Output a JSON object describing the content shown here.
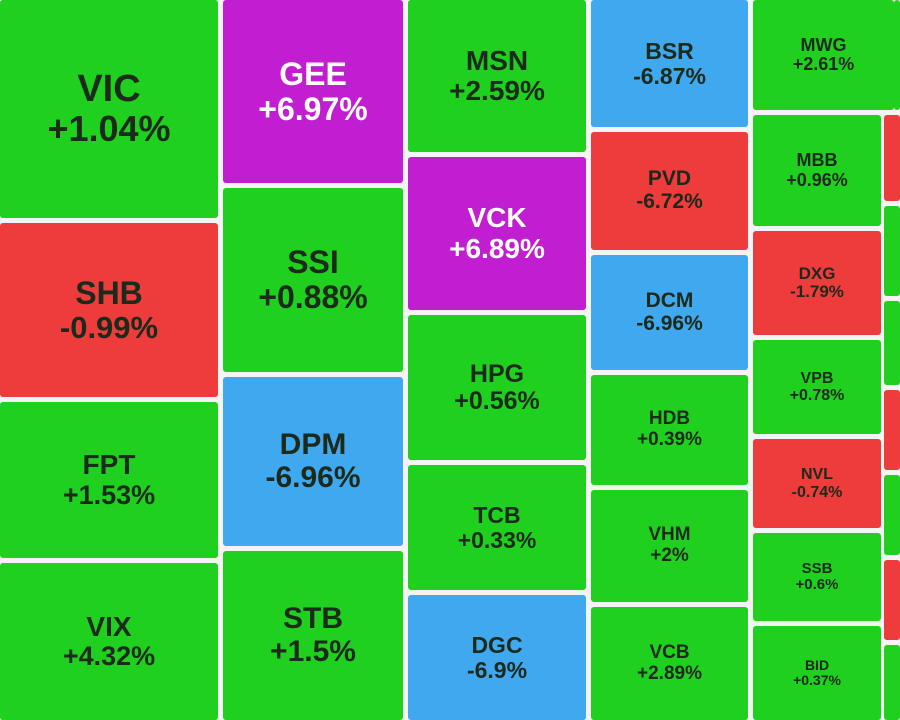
{
  "chart_data": {
    "type": "treemap",
    "colors": {
      "up": "#1fd01f",
      "down": "#ee3b3b",
      "ceiling": "#c11ed1",
      "floor": "#3fa8ee",
      "text_dark": "#1b2a1b",
      "text_light": "#ffffff"
    },
    "items": [
      {
        "symbol": "VIC",
        "change": "+1.04%",
        "value": 1.04,
        "status": "up"
      },
      {
        "symbol": "SHB",
        "change": "-0.99%",
        "value": -0.99,
        "status": "down"
      },
      {
        "symbol": "FPT",
        "change": "+1.53%",
        "value": 1.53,
        "status": "up"
      },
      {
        "symbol": "VIX",
        "change": "+4.32%",
        "value": 4.32,
        "status": "up"
      },
      {
        "symbol": "GEE",
        "change": "+6.97%",
        "value": 6.97,
        "status": "ceiling"
      },
      {
        "symbol": "SSI",
        "change": "+0.88%",
        "value": 0.88,
        "status": "up"
      },
      {
        "symbol": "DPM",
        "change": "-6.96%",
        "value": -6.96,
        "status": "floor"
      },
      {
        "symbol": "STB",
        "change": "+1.5%",
        "value": 1.5,
        "status": "up"
      },
      {
        "symbol": "MSN",
        "change": "+2.59%",
        "value": 2.59,
        "status": "up"
      },
      {
        "symbol": "VCK",
        "change": "+6.89%",
        "value": 6.89,
        "status": "ceiling"
      },
      {
        "symbol": "HPG",
        "change": "+0.56%",
        "value": 0.56,
        "status": "up"
      },
      {
        "symbol": "TCB",
        "change": "+0.33%",
        "value": 0.33,
        "status": "up"
      },
      {
        "symbol": "DGC",
        "change": "-6.9%",
        "value": -6.9,
        "status": "floor"
      },
      {
        "symbol": "BSR",
        "change": "-6.87%",
        "value": -6.87,
        "status": "floor"
      },
      {
        "symbol": "PVD",
        "change": "-6.72%",
        "value": -6.72,
        "status": "down"
      },
      {
        "symbol": "DCM",
        "change": "-6.96%",
        "value": -6.96,
        "status": "floor"
      },
      {
        "symbol": "HDB",
        "change": "+0.39%",
        "value": 0.39,
        "status": "up"
      },
      {
        "symbol": "VHM",
        "change": "+2%",
        "value": 2,
        "status": "up"
      },
      {
        "symbol": "VCB",
        "change": "+2.89%",
        "value": 2.89,
        "status": "up"
      },
      {
        "symbol": "MWG",
        "change": "+2.61%",
        "value": 2.61,
        "status": "up"
      },
      {
        "symbol": "MBB",
        "change": "+0.96%",
        "value": 0.96,
        "status": "up"
      },
      {
        "symbol": "DXG",
        "change": "-1.79%",
        "value": -1.79,
        "status": "down"
      },
      {
        "symbol": "VPB",
        "change": "+0.78%",
        "value": 0.78,
        "status": "up"
      },
      {
        "symbol": "NVL",
        "change": "-0.74%",
        "value": -0.74,
        "status": "down"
      },
      {
        "symbol": "SSB",
        "change": "+0.6%",
        "value": 0.6,
        "status": "up"
      },
      {
        "symbol": "BID",
        "change": "+0.37%",
        "value": 0.37,
        "status": "up"
      },
      {
        "symbol": "",
        "change": "",
        "status": "down"
      },
      {
        "symbol": "",
        "change": "",
        "status": "up"
      },
      {
        "symbol": "",
        "change": "",
        "status": "up"
      },
      {
        "symbol": "",
        "change": "",
        "status": "down"
      },
      {
        "symbol": "",
        "change": "",
        "status": "up"
      },
      {
        "symbol": "",
        "change": "",
        "status": "down"
      },
      {
        "symbol": "",
        "change": "",
        "status": "up"
      },
      {
        "symbol": "",
        "change": "",
        "status": "up"
      },
      {
        "symbol": "",
        "change": "",
        "status": "up"
      }
    ]
  }
}
